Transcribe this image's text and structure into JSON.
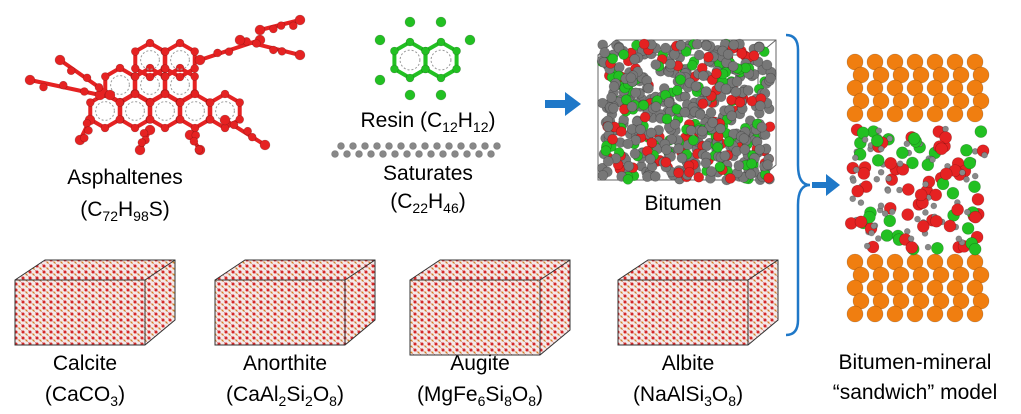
{
  "molecules": {
    "asphaltenes": {
      "name": "Asphaltenes",
      "formula": [
        "(C",
        "72",
        "H",
        "98",
        "S)"
      ]
    },
    "resin": {
      "label": [
        "Resin (C",
        "12",
        "H",
        "12",
        ")"
      ]
    },
    "saturates": {
      "name": "Saturates",
      "formula": [
        "(C",
        "22",
        "H",
        "46",
        ")"
      ]
    }
  },
  "bitumen": {
    "label": "Bitumen"
  },
  "minerals": [
    {
      "name": "Calcite",
      "formula": [
        "(CaCO",
        "3",
        ")"
      ]
    },
    {
      "name": "Anorthite",
      "formula": [
        "(CaAl",
        "2",
        "Si",
        "2",
        "O",
        "8",
        ")"
      ]
    },
    {
      "name": "Augite",
      "formula": [
        "(MgFe",
        "6",
        "Si",
        "8",
        "O",
        "8",
        ")"
      ]
    },
    {
      "name": "Albite",
      "formula": [
        "(NaAlSi",
        "3",
        "O",
        "8",
        ")"
      ]
    }
  ],
  "model": {
    "line1": "Bitumen-mineral",
    "line2": "“sandwich” model"
  }
}
